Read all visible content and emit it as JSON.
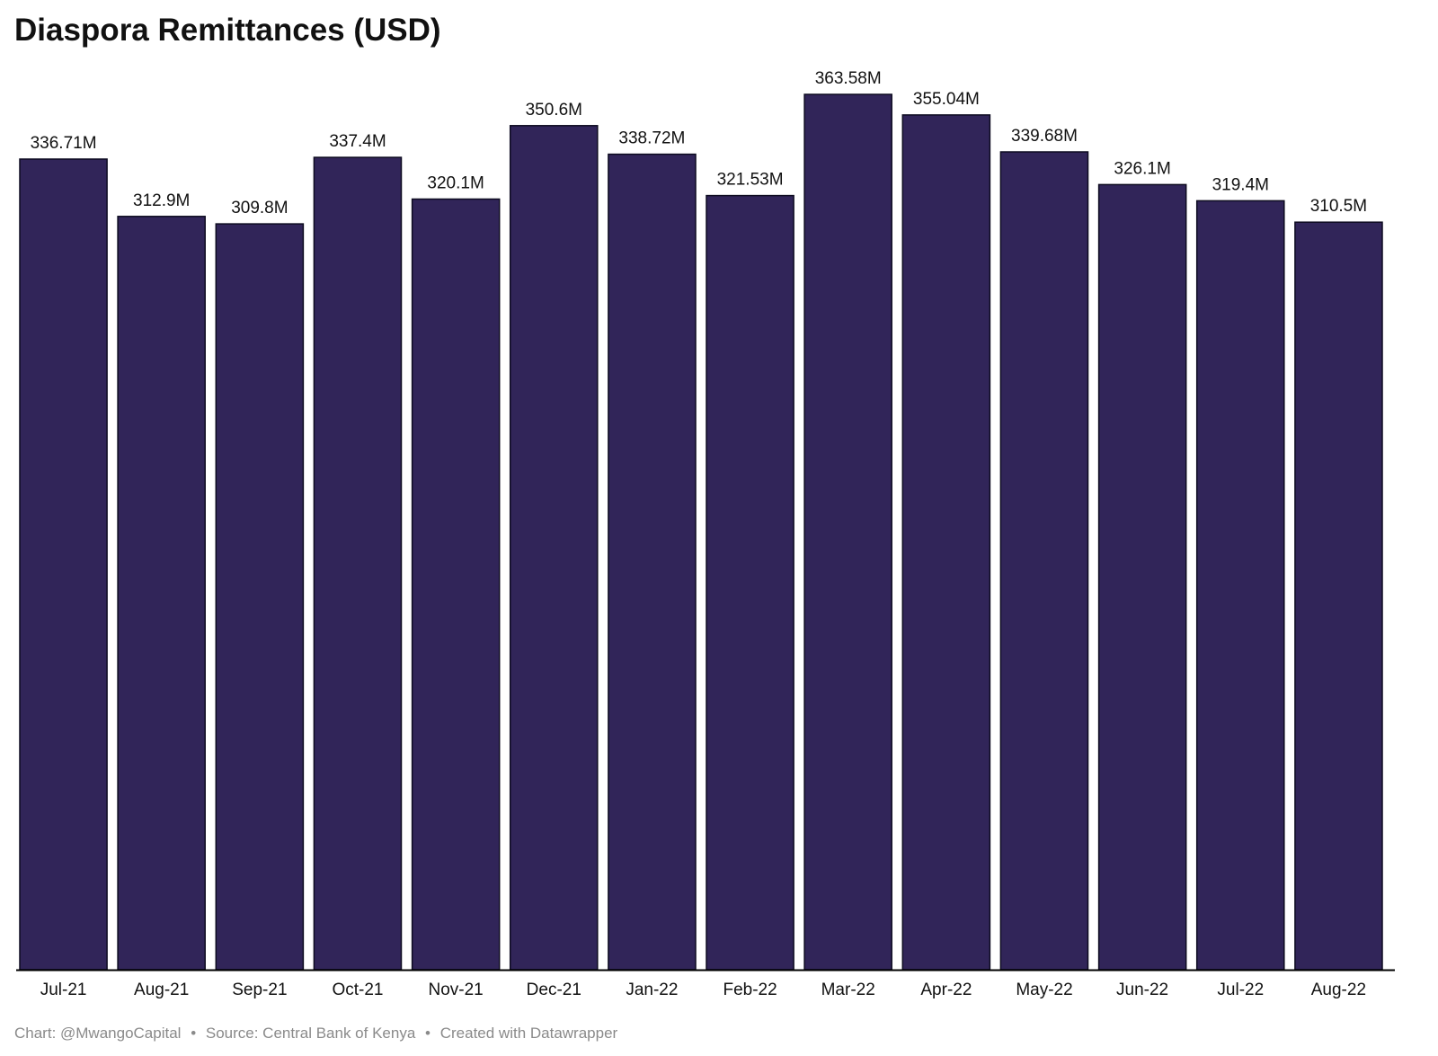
{
  "header": {
    "title": "Diaspora Remittances (USD)"
  },
  "footer": {
    "chart_credit": "Chart: @MwangoCapital",
    "source": "Source: Central Bank of Kenya",
    "created_with": "Created with Datawrapper",
    "separator": "•"
  },
  "colors": {
    "bar": "#312559",
    "bar_border": "#0d0b20",
    "axis": "#000000",
    "label": "#111111",
    "footer": "#8a8a8a"
  },
  "chart_data": {
    "type": "bar",
    "title": "Diaspora Remittances (USD)",
    "categories": [
      "Jul-21",
      "Aug-21",
      "Sep-21",
      "Oct-21",
      "Nov-21",
      "Dec-21",
      "Jan-22",
      "Feb-22",
      "Mar-22",
      "Apr-22",
      "May-22",
      "Jun-22",
      "Jul-22",
      "Aug-22"
    ],
    "values": [
      336.71,
      312.9,
      309.8,
      337.4,
      320.1,
      350.6,
      338.72,
      321.53,
      363.58,
      355.04,
      339.68,
      326.1,
      319.4,
      310.5
    ],
    "value_labels": [
      "336.71M",
      "312.9M",
      "309.8M",
      "337.4M",
      "320.1M",
      "350.6M",
      "338.72M",
      "321.53M",
      "363.58M",
      "355.04M",
      "339.68M",
      "326.1M",
      "319.4M",
      "310.5M"
    ],
    "unit": "M",
    "ylim": [
      0,
      363.58
    ],
    "grid": false,
    "legend": "none"
  }
}
